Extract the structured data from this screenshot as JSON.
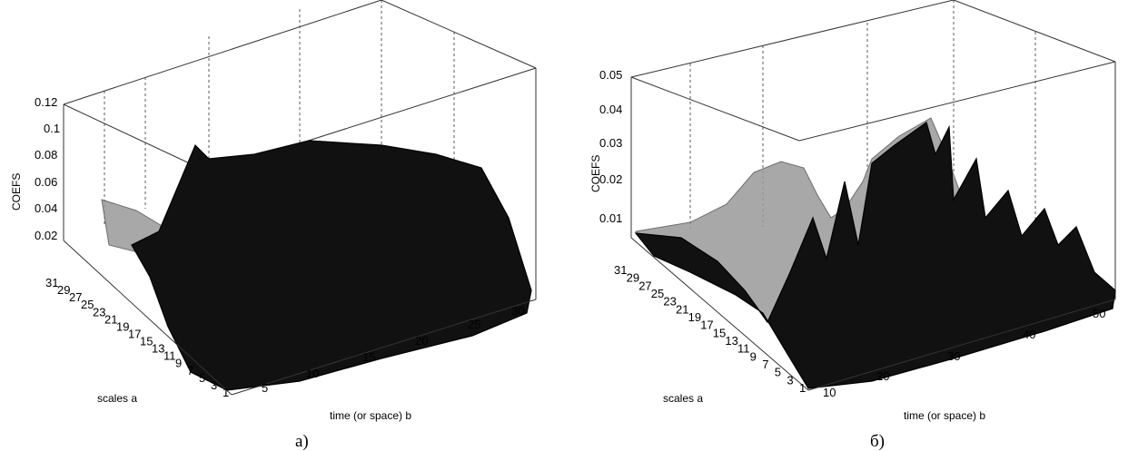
{
  "chart_data": [
    {
      "type": "surface",
      "caption": "a)",
      "zlabel": "COEFS",
      "ylabel": "scales a",
      "xlabel": "time (or space) b",
      "z_ticks": [
        "0.02",
        "0.04",
        "0.06",
        "0.08",
        "0.1",
        "0.12"
      ],
      "x_ticks": [
        "5",
        "10",
        "15",
        "20",
        "25",
        "30"
      ],
      "y_ticks": [
        "1",
        "3",
        "5",
        "7",
        "9",
        "11",
        "13",
        "15",
        "17",
        "19",
        "21",
        "23",
        "25",
        "27",
        "29",
        "31"
      ],
      "xlim": [
        1,
        30
      ],
      "ylim": [
        1,
        32
      ],
      "zlim": [
        0,
        0.13
      ],
      "grid": true
    },
    {
      "type": "surface",
      "caption": "б)",
      "zlabel": "COEFS",
      "ylabel": "scales a",
      "xlabel": "time (or space) b",
      "z_ticks": [
        "0.01",
        "0.02",
        "0.03",
        "0.04",
        "0.05"
      ],
      "x_ticks": [
        "10",
        "20",
        "30",
        "40",
        "50"
      ],
      "y_ticks": [
        "1",
        "3",
        "5",
        "7",
        "9",
        "11",
        "13",
        "15",
        "17",
        "19",
        "21",
        "23",
        "25",
        "27",
        "29",
        "31"
      ],
      "xlim": [
        1,
        50
      ],
      "ylim": [
        1,
        32
      ],
      "zlim": [
        0,
        0.05
      ],
      "grid": true
    }
  ]
}
